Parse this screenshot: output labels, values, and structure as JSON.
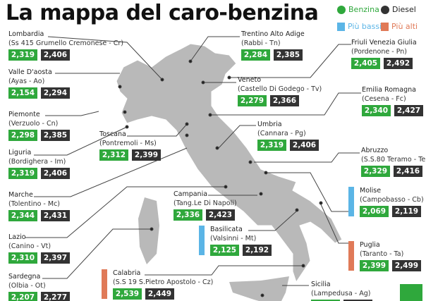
{
  "title": "La mappa del caro-benzina",
  "legend": {
    "benzina": {
      "label": "Benzina",
      "color": "#2fa83c"
    },
    "diesel": {
      "label": "Diesel",
      "color": "#333333"
    },
    "bassi": {
      "label": "Più bassi",
      "color": "#5bb5e6"
    },
    "alti": {
      "label": "Più alti",
      "color": "#e07a58"
    }
  },
  "regions": [
    {
      "name": "Lombardia",
      "place": "(Ss 415 Grumello Cremonese - Cr)",
      "benzina": "2,319",
      "diesel": "2,406"
    },
    {
      "name": "Valle D'aosta",
      "place": "(Ayas - Ao)",
      "benzina": "2,154",
      "diesel": "2,294"
    },
    {
      "name": "Piemonte",
      "place": "(Verzuolo - Cn)",
      "benzina": "2,298",
      "diesel": "2,385"
    },
    {
      "name": "Liguria",
      "place": "(Bordighera - Im)",
      "benzina": "2,319",
      "diesel": "2,406"
    },
    {
      "name": "Marche",
      "place": "(Tolentino - Mc)",
      "benzina": "2,344",
      "diesel": "2,431"
    },
    {
      "name": "Lazio",
      "place": "(Canino - Vt)",
      "benzina": "2,310",
      "diesel": "2,397"
    },
    {
      "name": "Sardegna",
      "place": "(Olbia - Ot)",
      "benzina": "2,207",
      "diesel": "2,277"
    },
    {
      "name": "Trentino Alto Adige",
      "place": "(Rabbi - Tn)",
      "benzina": "2,284",
      "diesel": "2,385"
    },
    {
      "name": "Friuli Venezia Giulia",
      "place": "(Pordenone - Pn)",
      "benzina": "2,405",
      "diesel": "2,492"
    },
    {
      "name": "Veneto",
      "place": "(Castello Di Godego - Tv)",
      "benzina": "2,279",
      "diesel": "2,366"
    },
    {
      "name": "Emilia Romagna",
      "place": "(Cesena - Fc)",
      "benzina": "2,340",
      "diesel": "2,427"
    },
    {
      "name": "Toscana",
      "place": "(Pontremoli - Ms)",
      "benzina": "2,312",
      "diesel": "2,399"
    },
    {
      "name": "Umbria",
      "place": "(Cannara - Pg)",
      "benzina": "2,319",
      "diesel": "2,406"
    },
    {
      "name": "Abruzzo",
      "place": "(S.S.80 Teramo - Te)",
      "benzina": "2,329",
      "diesel": "2,416"
    },
    {
      "name": "Campania",
      "place": "(Tang.Le Di Napoli)",
      "benzina": "2,336",
      "diesel": "2,423"
    },
    {
      "name": "Molise",
      "place": "(Campobasso - Cb)",
      "benzina": "2,069",
      "diesel": "2,119",
      "highlight": "bassi"
    },
    {
      "name": "Basilicata",
      "place": "(Valsinni - Mt)",
      "benzina": "2,125",
      "diesel": "2,192",
      "highlight": "bassi"
    },
    {
      "name": "Puglia",
      "place": "(Taranto - Ta)",
      "benzina": "2,399",
      "diesel": "2,499",
      "highlight": "alti"
    },
    {
      "name": "Calabria",
      "place": "(S.S 19 S.Pietro Apostolo - Cz)",
      "benzina": "2,539",
      "diesel": "2,449",
      "highlight": "alti"
    },
    {
      "name": "Sicilia",
      "place": "(Lampedusa - Ag)"
    }
  ]
}
